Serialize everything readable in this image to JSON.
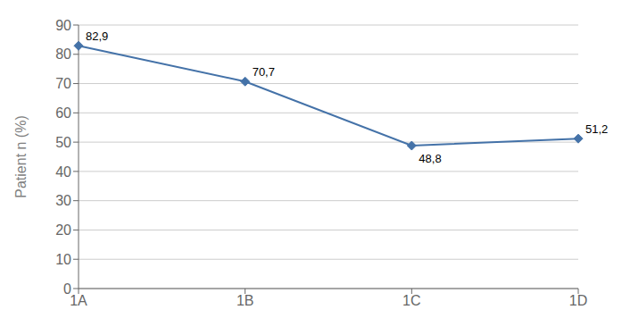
{
  "chart_data": {
    "type": "line",
    "categories": [
      "1A",
      "1B",
      "1C",
      "1D"
    ],
    "values": [
      82.9,
      70.7,
      48.8,
      51.2
    ],
    "value_labels": [
      "82,9",
      "70,7",
      "48,8",
      "51,2"
    ],
    "data_labels": true,
    "color": "#4472a8",
    "marker": "diamond",
    "ylabel": "Patient n  (%)",
    "ylim": [
      0,
      90
    ],
    "yticks": [
      0,
      10,
      20,
      30,
      40,
      50,
      60,
      70,
      80,
      90
    ],
    "grid": true
  }
}
